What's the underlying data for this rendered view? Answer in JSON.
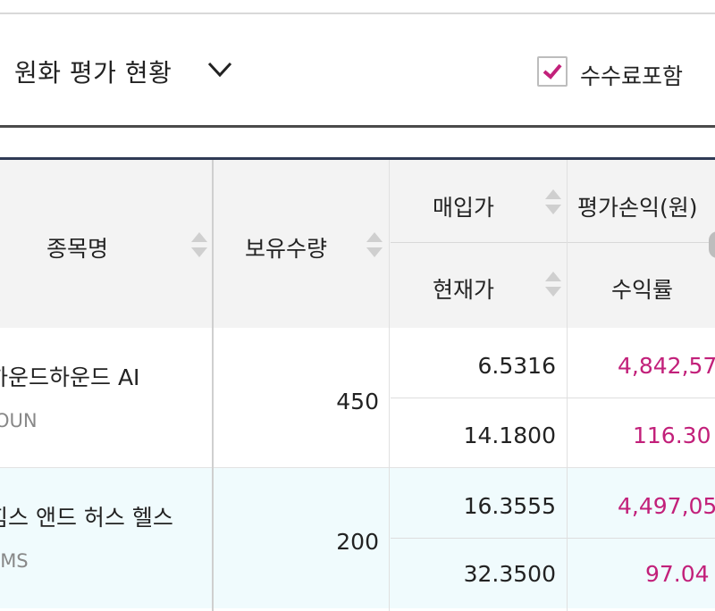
{
  "header": {
    "title": "원화 평가 현황",
    "fee_label": "수수료포함",
    "fee_checked": true
  },
  "columns": {
    "name": "종목명",
    "quantity": "보유수량",
    "purchase_price": "매입가",
    "current_price": "현재가",
    "eval_pl": "평가손익(원)",
    "return_rate": "수익률"
  },
  "rows": [
    {
      "name": "하운드하운드 AI",
      "code": "OUN",
      "quantity": "450",
      "purchase_price": "6.5316",
      "current_price": "14.1800",
      "eval_pl": "4,842,57",
      "return_rate": "116.30"
    },
    {
      "name": "힘스 앤드 허스 헬스",
      "code": "IMS",
      "quantity": "200",
      "purchase_price": "16.3555",
      "current_price": "32.3500",
      "eval_pl": "4,497,05",
      "return_rate": "97.04"
    }
  ],
  "colors": {
    "accent": "#c2207a",
    "row_alt": "#f0fbfd",
    "header_bg": "#f3f3f3"
  },
  "icons": {
    "dropdown": "chevron-down-icon",
    "check": "check-icon",
    "sort": "sort-icon"
  }
}
